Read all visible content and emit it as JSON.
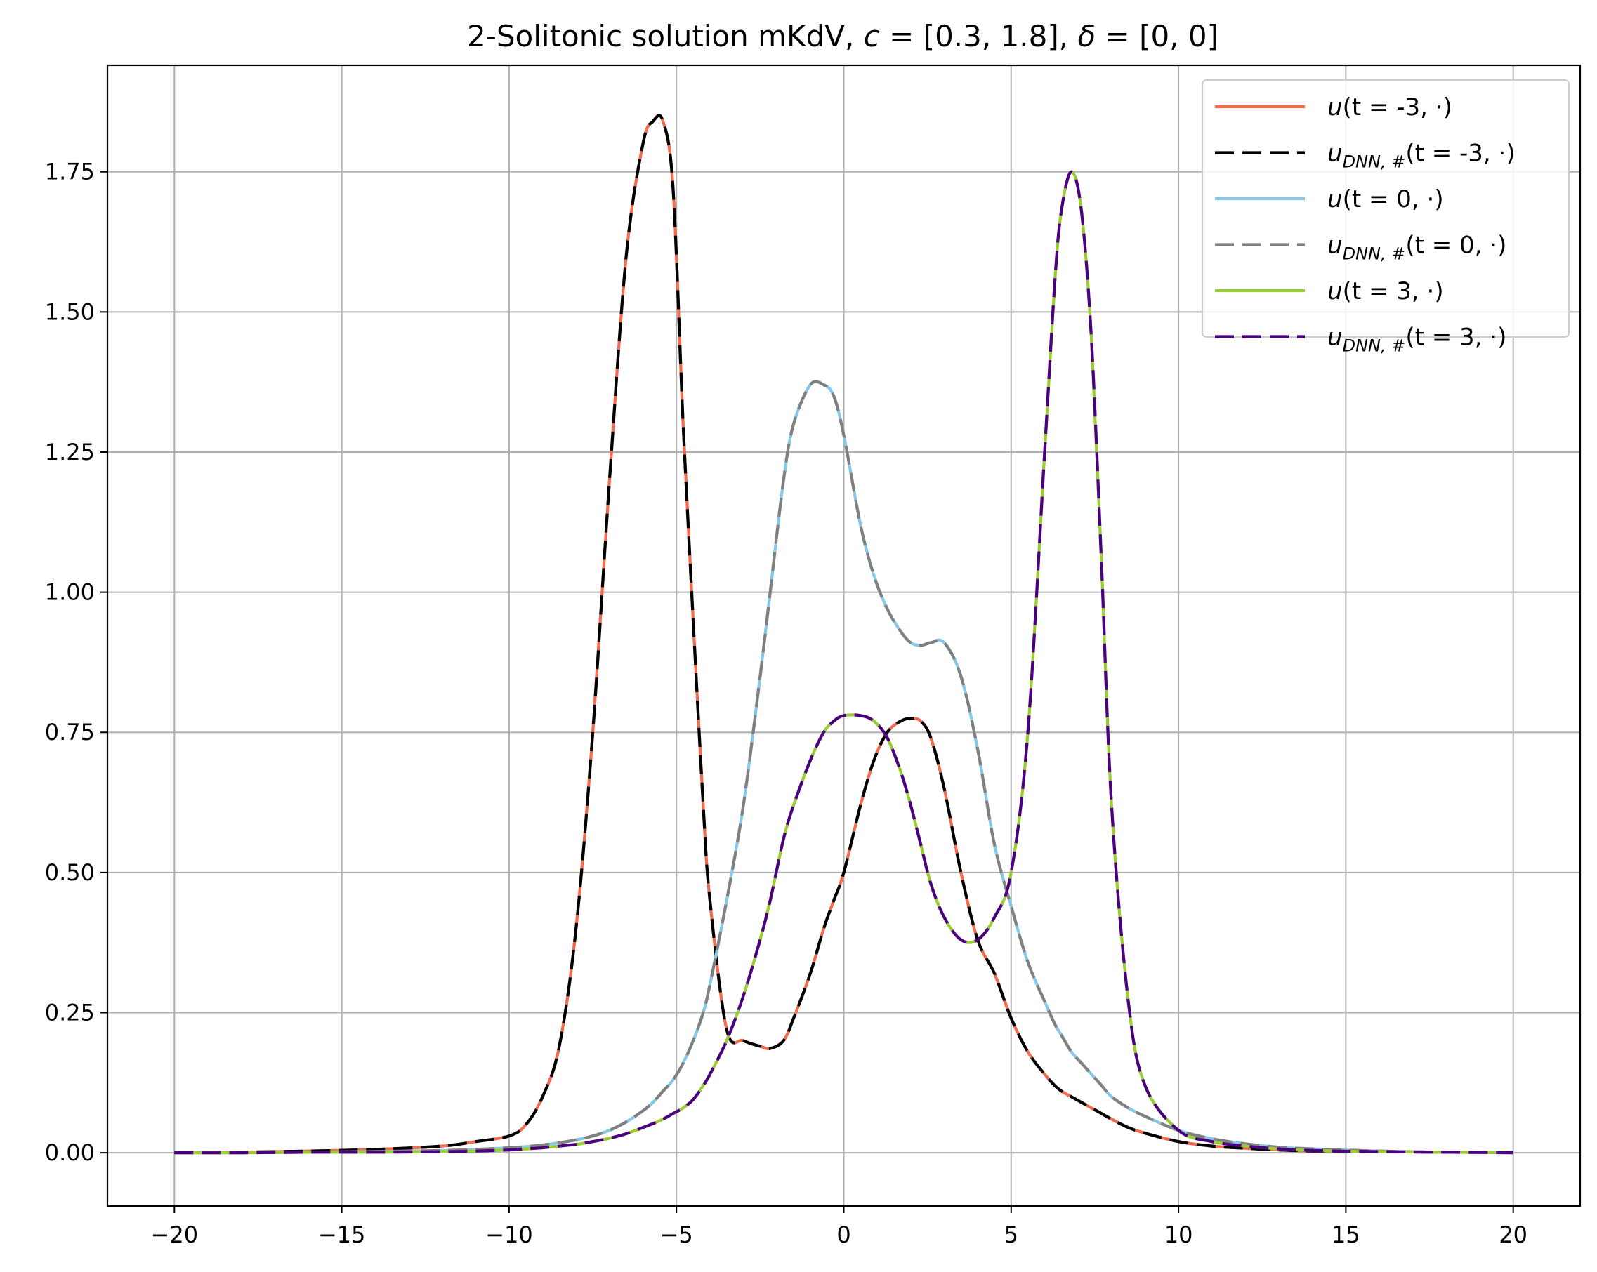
{
  "chart_data": {
    "type": "line",
    "title": "2-Solitonic solution mKdV, c = [0.3, 1.8], δ = [0, 0]",
    "title_parts": {
      "prefix": "2-Solitonic solution mKdV, ",
      "c_symbol": "c",
      "eq": " = ",
      "c_value": "[0.3, 1.8]",
      "sep": ", ",
      "delta_symbol": "δ",
      "delta_value": "[0, 0]"
    },
    "xlabel": "",
    "ylabel": "",
    "xlim": [
      -22,
      22
    ],
    "ylim": [
      -0.095,
      1.94
    ],
    "x_ticks": [
      -20,
      -15,
      -10,
      -5,
      0,
      5,
      10,
      15,
      20
    ],
    "x_tick_labels": [
      "−20",
      "−15",
      "−10",
      "−5",
      "0",
      "5",
      "10",
      "15",
      "20"
    ],
    "y_ticks": [
      0.0,
      0.25,
      0.5,
      0.75,
      1.0,
      1.25,
      1.5,
      1.75
    ],
    "y_tick_labels": [
      "0.00",
      "0.25",
      "0.50",
      "0.75",
      "1.00",
      "1.25",
      "1.50",
      "1.75"
    ],
    "grid": true,
    "legend_position": "top-right",
    "x": [
      -20,
      -18,
      -16,
      -14,
      -12,
      -11,
      -10,
      -9.5,
      -9,
      -8.5,
      -8,
      -7.5,
      -7,
      -6.5,
      -6,
      -5.7,
      -5.4,
      -5.1,
      -4.8,
      -4.5,
      -4.2,
      -4,
      -3.5,
      -3,
      -2.5,
      -2.2,
      -1.8,
      -1.5,
      -1,
      -0.6,
      -0.3,
      0,
      0.5,
      0.9,
      1.3,
      1.7,
      2,
      2.3,
      2.6,
      3,
      3.5,
      4,
      4.5,
      5,
      5.5,
      6,
      6.3,
      6.5,
      6.8,
      7.1,
      7.4,
      7.7,
      8,
      8.5,
      9,
      10,
      11,
      12,
      13,
      14,
      16,
      18,
      20
    ],
    "series": [
      {
        "name": "u(t=-3, ·)",
        "color": "#f26b4f",
        "dashed": false,
        "values": [
          0.0,
          0.001,
          0.003,
          0.006,
          0.012,
          0.02,
          0.03,
          0.05,
          0.1,
          0.19,
          0.4,
          0.75,
          1.2,
          1.6,
          1.8,
          1.84,
          1.84,
          1.72,
          1.3,
          0.95,
          0.62,
          0.45,
          0.22,
          0.2,
          0.19,
          0.186,
          0.2,
          0.24,
          0.32,
          0.4,
          0.45,
          0.5,
          0.62,
          0.7,
          0.75,
          0.77,
          0.775,
          0.77,
          0.74,
          0.65,
          0.5,
          0.38,
          0.32,
          0.24,
          0.18,
          0.14,
          0.12,
          0.11,
          0.1,
          0.09,
          0.08,
          0.07,
          0.06,
          0.045,
          0.035,
          0.02,
          0.012,
          0.008,
          0.005,
          0.003,
          0.002,
          0.001,
          0.001
        ]
      },
      {
        "name": "u_DNN,#(t=-3, ·)",
        "color": "#000000",
        "dashed": true,
        "values": [
          0.0,
          0.001,
          0.003,
          0.006,
          0.012,
          0.02,
          0.03,
          0.05,
          0.1,
          0.19,
          0.4,
          0.75,
          1.2,
          1.6,
          1.8,
          1.84,
          1.84,
          1.72,
          1.3,
          0.95,
          0.62,
          0.45,
          0.22,
          0.2,
          0.19,
          0.186,
          0.2,
          0.24,
          0.32,
          0.4,
          0.45,
          0.5,
          0.62,
          0.7,
          0.75,
          0.77,
          0.775,
          0.77,
          0.74,
          0.65,
          0.5,
          0.38,
          0.32,
          0.24,
          0.18,
          0.14,
          0.12,
          0.11,
          0.1,
          0.09,
          0.08,
          0.07,
          0.06,
          0.045,
          0.035,
          0.02,
          0.012,
          0.008,
          0.005,
          0.003,
          0.002,
          0.001,
          0.001
        ]
      },
      {
        "name": "u(t=0, ·)",
        "color": "#86c8e8",
        "dashed": false,
        "values": [
          0.0,
          0.0,
          0.001,
          0.002,
          0.004,
          0.006,
          0.009,
          0.011,
          0.014,
          0.018,
          0.023,
          0.03,
          0.04,
          0.055,
          0.075,
          0.09,
          0.11,
          0.13,
          0.16,
          0.2,
          0.25,
          0.3,
          0.45,
          0.62,
          0.85,
          1.0,
          1.2,
          1.3,
          1.37,
          1.37,
          1.35,
          1.28,
          1.12,
          1.03,
          0.97,
          0.93,
          0.91,
          0.905,
          0.91,
          0.91,
          0.85,
          0.72,
          0.55,
          0.44,
          0.34,
          0.27,
          0.23,
          0.21,
          0.18,
          0.16,
          0.14,
          0.12,
          0.1,
          0.08,
          0.065,
          0.04,
          0.025,
          0.016,
          0.01,
          0.007,
          0.003,
          0.001,
          0.001
        ]
      },
      {
        "name": "u_DNN,#(t=0, ·)",
        "color": "#808080",
        "dashed": true,
        "values": [
          0.0,
          0.0,
          0.001,
          0.002,
          0.004,
          0.006,
          0.009,
          0.011,
          0.014,
          0.018,
          0.023,
          0.03,
          0.04,
          0.055,
          0.075,
          0.09,
          0.11,
          0.13,
          0.16,
          0.2,
          0.25,
          0.3,
          0.45,
          0.62,
          0.85,
          1.0,
          1.2,
          1.3,
          1.37,
          1.37,
          1.35,
          1.28,
          1.12,
          1.03,
          0.97,
          0.93,
          0.91,
          0.905,
          0.91,
          0.91,
          0.85,
          0.72,
          0.55,
          0.44,
          0.34,
          0.27,
          0.23,
          0.21,
          0.18,
          0.16,
          0.14,
          0.12,
          0.1,
          0.08,
          0.065,
          0.04,
          0.025,
          0.016,
          0.01,
          0.007,
          0.003,
          0.001,
          0.001
        ]
      },
      {
        "name": "u(t=3, ·)",
        "color": "#9acd32",
        "dashed": false,
        "values": [
          0.0,
          0.0,
          0.001,
          0.001,
          0.002,
          0.003,
          0.005,
          0.007,
          0.009,
          0.012,
          0.015,
          0.02,
          0.026,
          0.034,
          0.045,
          0.052,
          0.06,
          0.07,
          0.08,
          0.095,
          0.12,
          0.14,
          0.2,
          0.28,
          0.38,
          0.45,
          0.56,
          0.62,
          0.7,
          0.75,
          0.77,
          0.78,
          0.78,
          0.77,
          0.74,
          0.68,
          0.62,
          0.55,
          0.48,
          0.42,
          0.38,
          0.38,
          0.42,
          0.5,
          0.75,
          1.25,
          1.55,
          1.68,
          1.75,
          1.68,
          1.45,
          1.05,
          0.62,
          0.27,
          0.12,
          0.04,
          0.02,
          0.012,
          0.007,
          0.004,
          0.002,
          0.001,
          0.0
        ]
      },
      {
        "name": "u_DNN,#(t=3, ·)",
        "color": "#4b0082",
        "dashed": true,
        "values": [
          0.0,
          0.0,
          0.001,
          0.001,
          0.002,
          0.003,
          0.005,
          0.007,
          0.009,
          0.012,
          0.015,
          0.02,
          0.026,
          0.034,
          0.045,
          0.052,
          0.06,
          0.07,
          0.08,
          0.095,
          0.12,
          0.14,
          0.2,
          0.28,
          0.38,
          0.45,
          0.56,
          0.62,
          0.7,
          0.75,
          0.77,
          0.78,
          0.78,
          0.77,
          0.74,
          0.68,
          0.62,
          0.55,
          0.48,
          0.42,
          0.38,
          0.38,
          0.42,
          0.5,
          0.75,
          1.25,
          1.55,
          1.68,
          1.75,
          1.68,
          1.45,
          1.05,
          0.62,
          0.27,
          0.12,
          0.04,
          0.02,
          0.012,
          0.007,
          0.004,
          0.002,
          0.001,
          0.0
        ]
      }
    ],
    "legend": [
      {
        "base": "u",
        "sub": "",
        "arg": "(t = -3, ·)"
      },
      {
        "base": "u",
        "sub": "DNN, #",
        "arg": "(t = -3, ·)"
      },
      {
        "base": "u",
        "sub": "",
        "arg": "(t = 0, ·)"
      },
      {
        "base": "u",
        "sub": "DNN, #",
        "arg": "(t = 0, ·)"
      },
      {
        "base": "u",
        "sub": "",
        "arg": "(t = 3, ·)"
      },
      {
        "base": "u",
        "sub": "DNN, #",
        "arg": "(t = 3, ·)"
      }
    ]
  }
}
